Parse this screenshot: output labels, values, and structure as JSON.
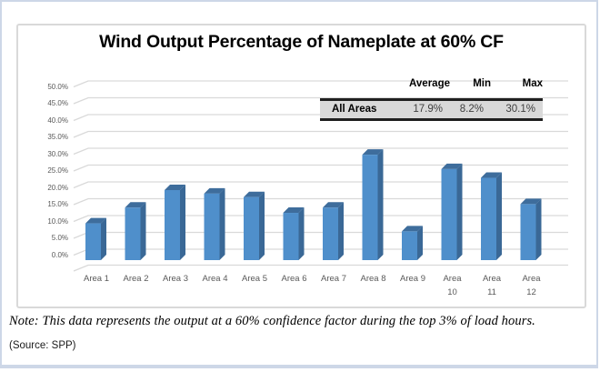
{
  "chart_data": {
    "type": "bar",
    "style": "3d-column",
    "title": "Wind Output Percentage of Nameplate at 60% CF",
    "categories": [
      "Area 1",
      "Area 2",
      "Area 3",
      "Area 4",
      "Area 5",
      "Area 6",
      "Area 7",
      "Area 8",
      "Area 9",
      "Area 10",
      "Area 11",
      "Area 12"
    ],
    "values": [
      10.5,
      15.0,
      20.0,
      19.0,
      18.0,
      13.5,
      15.0,
      30.1,
      8.2,
      26.0,
      23.5,
      16.0
    ],
    "unit": "% of nameplate",
    "ylim": [
      0,
      50
    ],
    "ytick_step": 5,
    "ytick_labels": [
      "0.0%",
      "5.0%",
      "10.0%",
      "15.0%",
      "20.0%",
      "25.0%",
      "30.0%",
      "35.0%",
      "40.0%",
      "45.0%",
      "50.0%"
    ],
    "xlabel": "",
    "ylabel": "",
    "grid": true,
    "legend": null,
    "colors": {
      "bar_front": "#4f8fcb",
      "bar_top": "#3e6d9c",
      "bar_side": "#3a6896",
      "gridline": "#d9d9d9",
      "axis_text": "#595959"
    }
  },
  "summary_table": {
    "columns": [
      "Average",
      "Min",
      "Max"
    ],
    "rows": [
      {
        "label": "All Areas",
        "average": "17.9%",
        "min": "8.2%",
        "max": "30.1%"
      }
    ]
  },
  "footer": {
    "note": "Note: This data represents the output at a 60% confidence factor during the top 3% of load hours.",
    "source": "(Source: SPP)"
  }
}
